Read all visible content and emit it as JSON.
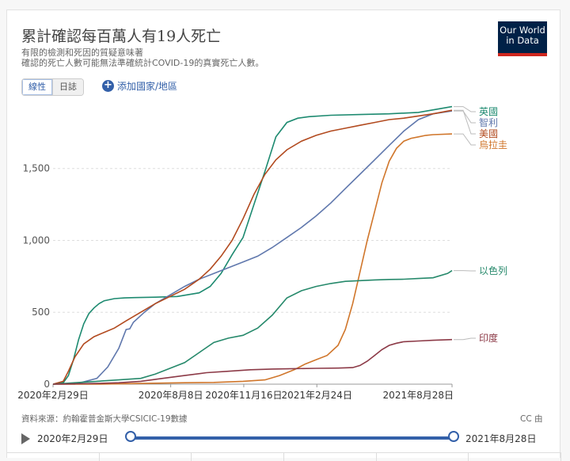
{
  "header": {
    "title": "累計確認每百萬人有19人死亡",
    "subtitle_lines": [
      "有限的檢測和死因的質疑意味著",
      "確認的死亡人數可能無法準確統計COVID-19的真實死亡人數。"
    ],
    "logo_line1": "Our World",
    "logo_line2": "in Data"
  },
  "controls": {
    "scale_linear": "線性",
    "scale_log": "日誌",
    "add_country": "添加國家/地區"
  },
  "footer": {
    "source": "資料來源：約翰霍普金斯大學CSICIC-19數據",
    "license": "CC 由"
  },
  "timeline": {
    "start_label": "2020年2月29日",
    "end_label": "2021年8月28日"
  },
  "colors": {
    "uk": "#1d8a70",
    "chile": "#6078ad",
    "us": "#b24a1f",
    "uruguay": "#d0762b",
    "israel": "#26896b",
    "india": "#8c3a47"
  },
  "chart_data": {
    "type": "line",
    "x_ticks": [
      "2020年2月29日",
      "2020年8月8日",
      "2020年11月16日",
      "2021年2月24日",
      "2021年8月28日"
    ],
    "y_ticks": [
      0,
      500,
      1000,
      1500
    ],
    "y_tick_labels": [
      "0",
      "500",
      "1,000",
      "1,500"
    ],
    "ylim": [
      0,
      1950
    ],
    "x_range_days": [
      0,
      546
    ],
    "series": [
      {
        "name": "英國",
        "color": "#1d8a70",
        "days": [
          0,
          14,
          21,
          28,
          35,
          42,
          49,
          56,
          63,
          70,
          84,
          98,
          112,
          140,
          170,
          200,
          215,
          230,
          245,
          260,
          275,
          290,
          305,
          320,
          335,
          350,
          380,
          420,
          460,
          500,
          546
        ],
        "values": [
          0,
          10,
          60,
          170,
          310,
          420,
          490,
          530,
          560,
          580,
          595,
          600,
          602,
          605,
          610,
          635,
          680,
          770,
          900,
          1020,
          1250,
          1480,
          1720,
          1820,
          1850,
          1860,
          1870,
          1875,
          1880,
          1890,
          1930
        ]
      },
      {
        "name": "智利",
        "color": "#6078ad",
        "days": [
          0,
          30,
          60,
          75,
          90,
          100,
          105,
          110,
          125,
          140,
          160,
          180,
          200,
          220,
          240,
          260,
          280,
          300,
          320,
          340,
          360,
          380,
          400,
          420,
          440,
          460,
          480,
          500,
          520,
          546
        ],
        "values": [
          0,
          0,
          40,
          120,
          250,
          380,
          385,
          430,
          500,
          560,
          620,
          680,
          730,
          770,
          810,
          850,
          890,
          950,
          1020,
          1090,
          1170,
          1260,
          1360,
          1460,
          1560,
          1660,
          1760,
          1840,
          1880,
          1900
        ]
      },
      {
        "name": "美國",
        "color": "#b24a1f",
        "days": [
          0,
          14,
          21,
          30,
          42,
          56,
          70,
          84,
          100,
          120,
          140,
          160,
          180,
          200,
          215,
          230,
          245,
          260,
          275,
          290,
          305,
          320,
          340,
          360,
          380,
          400,
          420,
          440,
          460,
          480,
          500,
          520,
          546
        ],
        "values": [
          0,
          20,
          90,
          190,
          280,
          330,
          360,
          390,
          440,
          500,
          560,
          610,
          660,
          730,
          800,
          890,
          1000,
          1150,
          1320,
          1460,
          1560,
          1630,
          1690,
          1730,
          1760,
          1780,
          1800,
          1820,
          1840,
          1850,
          1865,
          1880,
          1905
        ]
      },
      {
        "name": "烏拉圭",
        "color": "#d0762b",
        "days": [
          0,
          60,
          120,
          180,
          220,
          260,
          290,
          310,
          330,
          345,
          360,
          375,
          390,
          400,
          410,
          420,
          430,
          440,
          450,
          460,
          470,
          480,
          490,
          500,
          510,
          520,
          546
        ],
        "values": [
          0,
          0,
          5,
          10,
          12,
          20,
          30,
          60,
          100,
          140,
          170,
          200,
          270,
          380,
          560,
          780,
          1000,
          1200,
          1400,
          1550,
          1640,
          1690,
          1710,
          1720,
          1730,
          1735,
          1740
        ]
      },
      {
        "name": "以色列",
        "color": "#26896b",
        "days": [
          0,
          30,
          60,
          90,
          120,
          140,
          160,
          180,
          200,
          220,
          240,
          260,
          280,
          300,
          320,
          340,
          360,
          380,
          400,
          420,
          440,
          460,
          480,
          500,
          520,
          540,
          546
        ],
        "values": [
          0,
          10,
          20,
          30,
          40,
          70,
          110,
          150,
          220,
          290,
          320,
          340,
          390,
          480,
          600,
          650,
          680,
          700,
          715,
          720,
          725,
          728,
          730,
          735,
          740,
          770,
          790
        ]
      },
      {
        "name": "印度",
        "color": "#8c3a47",
        "days": [
          0,
          60,
          90,
          120,
          150,
          180,
          210,
          240,
          270,
          300,
          330,
          360,
          390,
          410,
          420,
          430,
          440,
          450,
          460,
          470,
          480,
          500,
          520,
          546
        ],
        "values": [
          0,
          5,
          10,
          20,
          40,
          60,
          80,
          90,
          100,
          105,
          108,
          110,
          112,
          115,
          130,
          160,
          200,
          240,
          270,
          285,
          295,
          300,
          305,
          310
        ]
      }
    ]
  }
}
